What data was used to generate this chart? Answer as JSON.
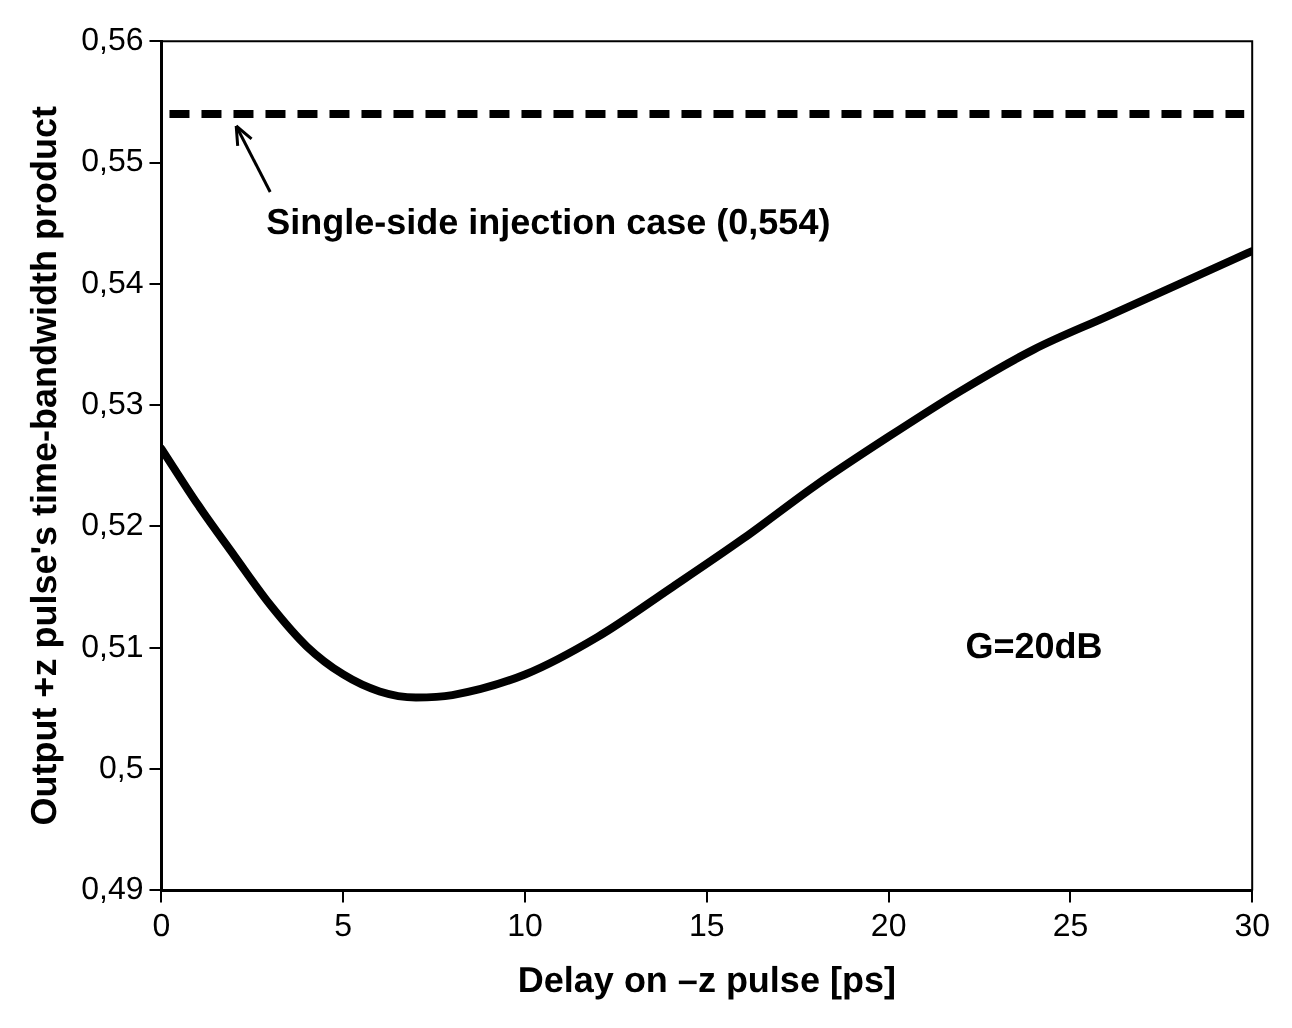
{
  "chart_data": {
    "type": "line",
    "xlabel": "Delay on –z pulse [ps]",
    "ylabel": "Output +z pulse's time-bandwidth product",
    "x": [
      0,
      1,
      2,
      3,
      4,
      5,
      6,
      7,
      8,
      10,
      12,
      14,
      16,
      18,
      20,
      22,
      24,
      26,
      28,
      30
    ],
    "series": [
      {
        "color": "#000000",
        "values": [
          0.5264,
          0.5218,
          0.5176,
          0.5135,
          0.5101,
          0.5078,
          0.5064,
          0.5059,
          0.5061,
          0.5078,
          0.5109,
          0.5149,
          0.519,
          0.5234,
          0.5274,
          0.5312,
          0.5346,
          0.5373,
          0.54,
          0.5427
        ]
      }
    ],
    "xlim": [
      0,
      30
    ],
    "xticks": [
      0,
      5,
      10,
      15,
      20,
      25,
      30
    ],
    "ylim": [
      0.49,
      0.56
    ],
    "yticks": [
      {
        "value": 0.49,
        "label": "0,49"
      },
      {
        "value": 0.5,
        "label": "0,5"
      },
      {
        "value": 0.51,
        "label": "0,51"
      },
      {
        "value": 0.52,
        "label": "0,52"
      },
      {
        "value": 0.53,
        "label": "0,53"
      },
      {
        "value": 0.54,
        "label": "0,54"
      },
      {
        "value": 0.55,
        "label": "0,55"
      },
      {
        "value": 0.56,
        "label": "0,56"
      }
    ],
    "ref_lines": [
      {
        "axis": "y",
        "value": 0.554,
        "color": "#000000",
        "line_style": "dashed"
      }
    ],
    "annotations": [
      {
        "text": "Single-side injection case (0,554)",
        "x": 2,
        "y": 0.554
      },
      "G=20dB"
    ],
    "grid": false,
    "legend": false,
    "marker": "none",
    "line_style": "solid"
  }
}
